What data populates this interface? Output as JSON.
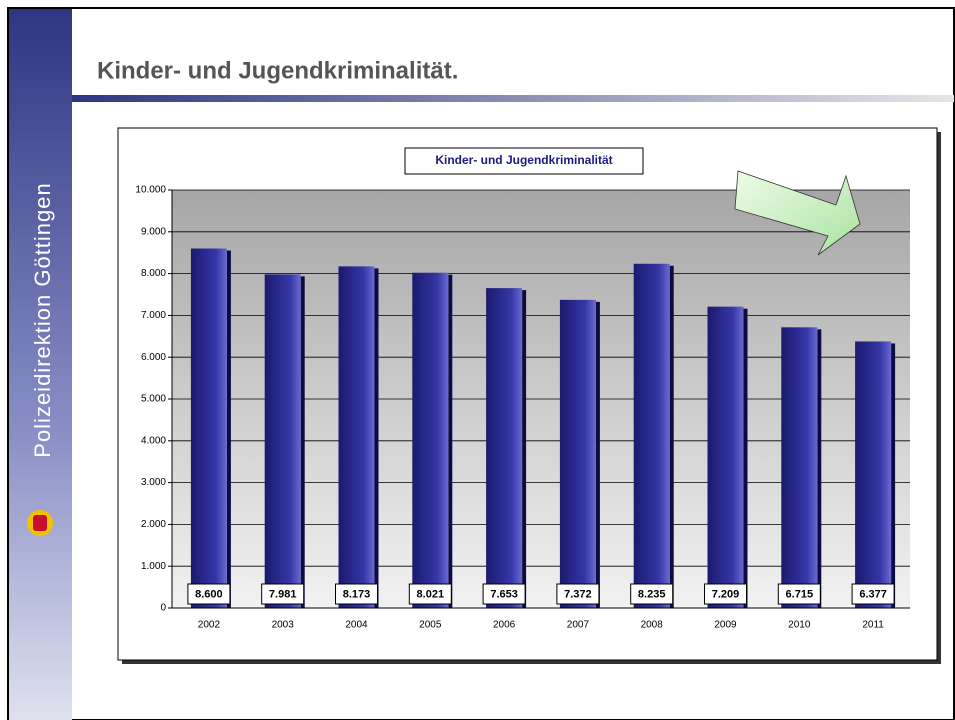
{
  "sidebar": "Polizeidirektion Göttingen",
  "slide_title": "Kinder- und Jugendkriminalität.",
  "chart_data": {
    "type": "bar",
    "title": "Kinder- und Jugendkriminalität",
    "categories": [
      "2002",
      "2003",
      "2004",
      "2005",
      "2006",
      "2007",
      "2008",
      "2009",
      "2010",
      "2011"
    ],
    "values": [
      8600,
      7981,
      8173,
      8021,
      7653,
      7372,
      8235,
      7209,
      6715,
      6377
    ],
    "value_labels": [
      "8.600",
      "7.981",
      "8.173",
      "8.021",
      "7.653",
      "7.372",
      "8.235",
      "7.209",
      "6.715",
      "6.377"
    ],
    "color": "#2a2a8c",
    "ylim": [
      0,
      10000
    ],
    "yticks": [
      0,
      {
        "value": 1000,
        "label": "1.000"
      },
      {
        "value": 2000,
        "label": "2.000"
      },
      {
        "value": 3000,
        "label": "3.000"
      },
      {
        "value": 4000,
        "label": "4.000"
      },
      {
        "value": 5000,
        "label": "5.000"
      },
      {
        "value": 6000,
        "label": "6.000"
      },
      {
        "value": 7000,
        "label": "7.000"
      },
      {
        "value": 8000,
        "label": "8.000"
      },
      {
        "value": 9000,
        "label": "9.000"
      },
      {
        "value": 10000,
        "label": "10.000"
      }
    ],
    "grid": true
  }
}
